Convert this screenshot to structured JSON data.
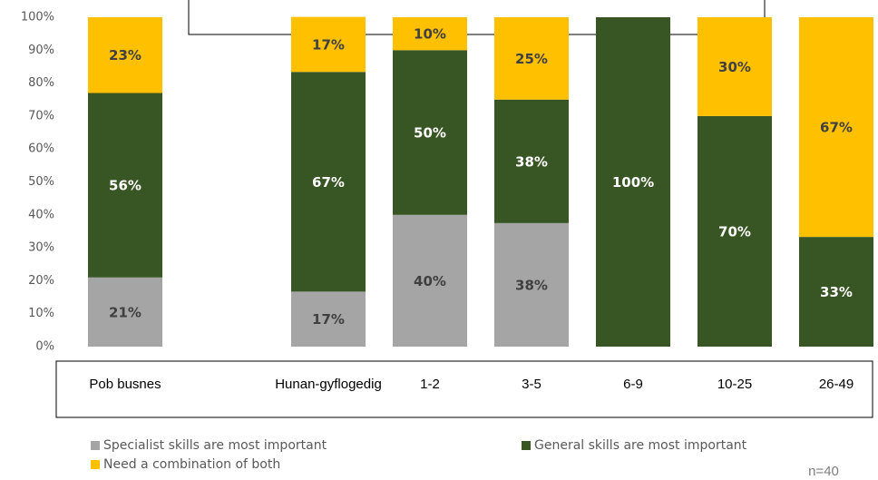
{
  "chart_data": {
    "type": "stacked_bar",
    "categories": [
      "Pob busnes",
      null,
      "Hunan-gyflogedig",
      "1-2",
      "3-5",
      "6-9",
      "10-25",
      "26-49"
    ],
    "series": [
      {
        "name": "Specialist skills are most important",
        "color": "#a5a5a5",
        "values": [
          21,
          null,
          16.7,
          40,
          37.5,
          0,
          0,
          0
        ],
        "value_labels": [
          "21%",
          null,
          "17%",
          "40%",
          "38%",
          null,
          null,
          null
        ]
      },
      {
        "name": "General skills are most important",
        "color": "#375623",
        "values": [
          56,
          null,
          66.7,
          50,
          37.5,
          100,
          70,
          33.3
        ],
        "value_labels": [
          "56%",
          null,
          "67%",
          "50%",
          "38%",
          "100%",
          "70%",
          "33%"
        ]
      },
      {
        "name": "Need a combination of both",
        "color": "#ffc000",
        "values": [
          23,
          null,
          16.7,
          10,
          25,
          0,
          30,
          66.7
        ],
        "value_labels": [
          "23%",
          null,
          "17%",
          "10%",
          "25%",
          null,
          "30%",
          "67%"
        ]
      }
    ],
    "ylim": [
      0,
      100
    ],
    "yticks": [
      {
        "value": 0,
        "label": "0%"
      },
      {
        "value": 10,
        "label": "10%"
      },
      {
        "value": 20,
        "label": "20%"
      },
      {
        "value": 30,
        "label": "30%"
      },
      {
        "value": 40,
        "label": "40%"
      },
      {
        "value": 50,
        "label": "50%"
      },
      {
        "value": 60,
        "label": "60%"
      },
      {
        "value": 70,
        "label": "70%"
      },
      {
        "value": 80,
        "label": "80%"
      },
      {
        "value": 90,
        "label": "90%"
      },
      {
        "value": 100,
        "label": "100%"
      }
    ],
    "grid": false,
    "annotation": "n=40"
  }
}
